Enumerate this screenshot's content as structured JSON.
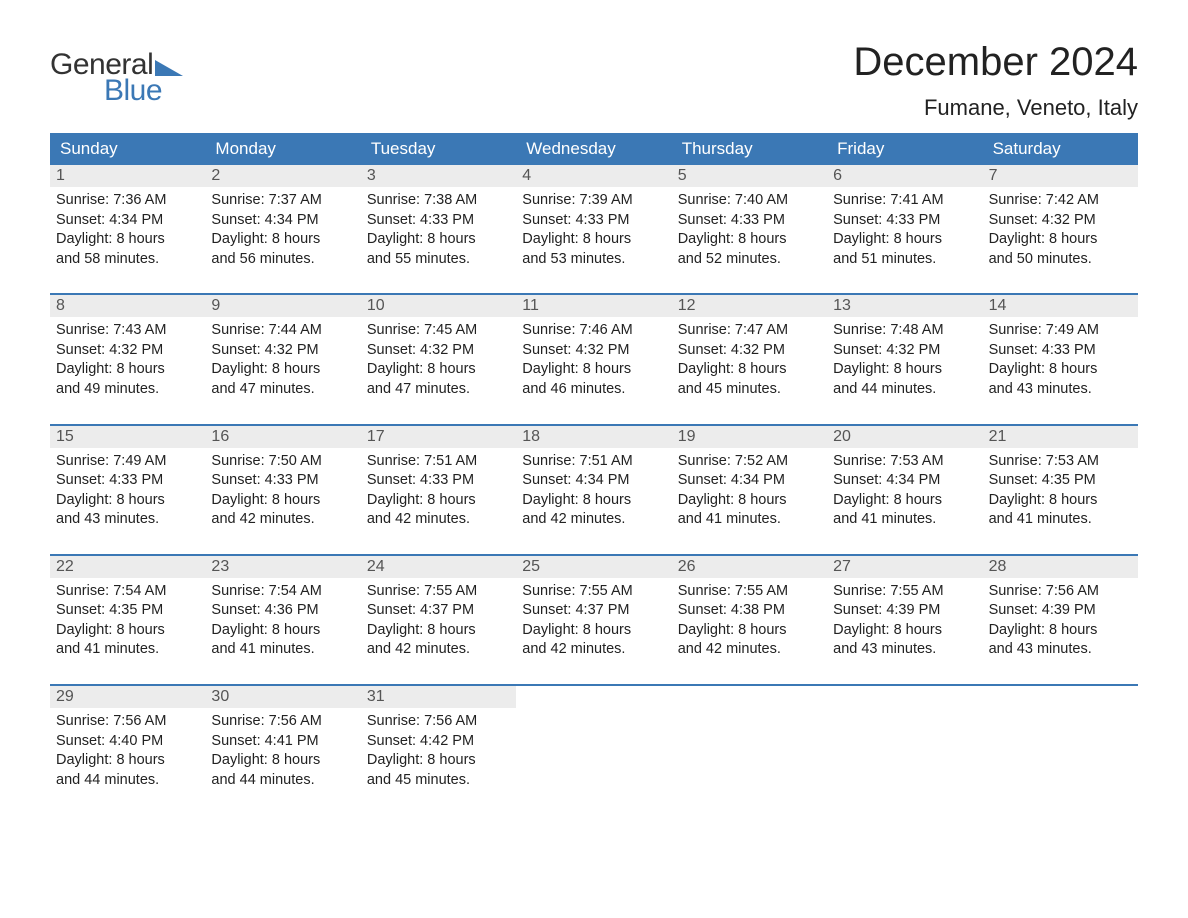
{
  "logo": {
    "text_general": "General",
    "text_blue": "Blue"
  },
  "header": {
    "month_title": "December 2024",
    "location": "Fumane, Veneto, Italy"
  },
  "colors": {
    "header_bar": "#3b78b5",
    "daynum_bg": "#ececec",
    "text_dark": "#222222",
    "text_grey": "#555555",
    "background": "#ffffff"
  },
  "typography": {
    "month_title_fontsize": 40,
    "location_fontsize": 22,
    "weekday_fontsize": 17,
    "daynum_fontsize": 16,
    "body_fontsize": 14.5
  },
  "calendar": {
    "type": "table",
    "weekdays": [
      "Sunday",
      "Monday",
      "Tuesday",
      "Wednesday",
      "Thursday",
      "Friday",
      "Saturday"
    ],
    "weeks": [
      [
        {
          "n": "1",
          "sunrise": "Sunrise: 7:36 AM",
          "sunset": "Sunset: 4:34 PM",
          "dl1": "Daylight: 8 hours",
          "dl2": "and 58 minutes."
        },
        {
          "n": "2",
          "sunrise": "Sunrise: 7:37 AM",
          "sunset": "Sunset: 4:34 PM",
          "dl1": "Daylight: 8 hours",
          "dl2": "and 56 minutes."
        },
        {
          "n": "3",
          "sunrise": "Sunrise: 7:38 AM",
          "sunset": "Sunset: 4:33 PM",
          "dl1": "Daylight: 8 hours",
          "dl2": "and 55 minutes."
        },
        {
          "n": "4",
          "sunrise": "Sunrise: 7:39 AM",
          "sunset": "Sunset: 4:33 PM",
          "dl1": "Daylight: 8 hours",
          "dl2": "and 53 minutes."
        },
        {
          "n": "5",
          "sunrise": "Sunrise: 7:40 AM",
          "sunset": "Sunset: 4:33 PM",
          "dl1": "Daylight: 8 hours",
          "dl2": "and 52 minutes."
        },
        {
          "n": "6",
          "sunrise": "Sunrise: 7:41 AM",
          "sunset": "Sunset: 4:33 PM",
          "dl1": "Daylight: 8 hours",
          "dl2": "and 51 minutes."
        },
        {
          "n": "7",
          "sunrise": "Sunrise: 7:42 AM",
          "sunset": "Sunset: 4:32 PM",
          "dl1": "Daylight: 8 hours",
          "dl2": "and 50 minutes."
        }
      ],
      [
        {
          "n": "8",
          "sunrise": "Sunrise: 7:43 AM",
          "sunset": "Sunset: 4:32 PM",
          "dl1": "Daylight: 8 hours",
          "dl2": "and 49 minutes."
        },
        {
          "n": "9",
          "sunrise": "Sunrise: 7:44 AM",
          "sunset": "Sunset: 4:32 PM",
          "dl1": "Daylight: 8 hours",
          "dl2": "and 47 minutes."
        },
        {
          "n": "10",
          "sunrise": "Sunrise: 7:45 AM",
          "sunset": "Sunset: 4:32 PM",
          "dl1": "Daylight: 8 hours",
          "dl2": "and 47 minutes."
        },
        {
          "n": "11",
          "sunrise": "Sunrise: 7:46 AM",
          "sunset": "Sunset: 4:32 PM",
          "dl1": "Daylight: 8 hours",
          "dl2": "and 46 minutes."
        },
        {
          "n": "12",
          "sunrise": "Sunrise: 7:47 AM",
          "sunset": "Sunset: 4:32 PM",
          "dl1": "Daylight: 8 hours",
          "dl2": "and 45 minutes."
        },
        {
          "n": "13",
          "sunrise": "Sunrise: 7:48 AM",
          "sunset": "Sunset: 4:32 PM",
          "dl1": "Daylight: 8 hours",
          "dl2": "and 44 minutes."
        },
        {
          "n": "14",
          "sunrise": "Sunrise: 7:49 AM",
          "sunset": "Sunset: 4:33 PM",
          "dl1": "Daylight: 8 hours",
          "dl2": "and 43 minutes."
        }
      ],
      [
        {
          "n": "15",
          "sunrise": "Sunrise: 7:49 AM",
          "sunset": "Sunset: 4:33 PM",
          "dl1": "Daylight: 8 hours",
          "dl2": "and 43 minutes."
        },
        {
          "n": "16",
          "sunrise": "Sunrise: 7:50 AM",
          "sunset": "Sunset: 4:33 PM",
          "dl1": "Daylight: 8 hours",
          "dl2": "and 42 minutes."
        },
        {
          "n": "17",
          "sunrise": "Sunrise: 7:51 AM",
          "sunset": "Sunset: 4:33 PM",
          "dl1": "Daylight: 8 hours",
          "dl2": "and 42 minutes."
        },
        {
          "n": "18",
          "sunrise": "Sunrise: 7:51 AM",
          "sunset": "Sunset: 4:34 PM",
          "dl1": "Daylight: 8 hours",
          "dl2": "and 42 minutes."
        },
        {
          "n": "19",
          "sunrise": "Sunrise: 7:52 AM",
          "sunset": "Sunset: 4:34 PM",
          "dl1": "Daylight: 8 hours",
          "dl2": "and 41 minutes."
        },
        {
          "n": "20",
          "sunrise": "Sunrise: 7:53 AM",
          "sunset": "Sunset: 4:34 PM",
          "dl1": "Daylight: 8 hours",
          "dl2": "and 41 minutes."
        },
        {
          "n": "21",
          "sunrise": "Sunrise: 7:53 AM",
          "sunset": "Sunset: 4:35 PM",
          "dl1": "Daylight: 8 hours",
          "dl2": "and 41 minutes."
        }
      ],
      [
        {
          "n": "22",
          "sunrise": "Sunrise: 7:54 AM",
          "sunset": "Sunset: 4:35 PM",
          "dl1": "Daylight: 8 hours",
          "dl2": "and 41 minutes."
        },
        {
          "n": "23",
          "sunrise": "Sunrise: 7:54 AM",
          "sunset": "Sunset: 4:36 PM",
          "dl1": "Daylight: 8 hours",
          "dl2": "and 41 minutes."
        },
        {
          "n": "24",
          "sunrise": "Sunrise: 7:55 AM",
          "sunset": "Sunset: 4:37 PM",
          "dl1": "Daylight: 8 hours",
          "dl2": "and 42 minutes."
        },
        {
          "n": "25",
          "sunrise": "Sunrise: 7:55 AM",
          "sunset": "Sunset: 4:37 PM",
          "dl1": "Daylight: 8 hours",
          "dl2": "and 42 minutes."
        },
        {
          "n": "26",
          "sunrise": "Sunrise: 7:55 AM",
          "sunset": "Sunset: 4:38 PM",
          "dl1": "Daylight: 8 hours",
          "dl2": "and 42 minutes."
        },
        {
          "n": "27",
          "sunrise": "Sunrise: 7:55 AM",
          "sunset": "Sunset: 4:39 PM",
          "dl1": "Daylight: 8 hours",
          "dl2": "and 43 minutes."
        },
        {
          "n": "28",
          "sunrise": "Sunrise: 7:56 AM",
          "sunset": "Sunset: 4:39 PM",
          "dl1": "Daylight: 8 hours",
          "dl2": "and 43 minutes."
        }
      ],
      [
        {
          "n": "29",
          "sunrise": "Sunrise: 7:56 AM",
          "sunset": "Sunset: 4:40 PM",
          "dl1": "Daylight: 8 hours",
          "dl2": "and 44 minutes."
        },
        {
          "n": "30",
          "sunrise": "Sunrise: 7:56 AM",
          "sunset": "Sunset: 4:41 PM",
          "dl1": "Daylight: 8 hours",
          "dl2": "and 44 minutes."
        },
        {
          "n": "31",
          "sunrise": "Sunrise: 7:56 AM",
          "sunset": "Sunset: 4:42 PM",
          "dl1": "Daylight: 8 hours",
          "dl2": "and 45 minutes."
        },
        null,
        null,
        null,
        null
      ]
    ]
  }
}
